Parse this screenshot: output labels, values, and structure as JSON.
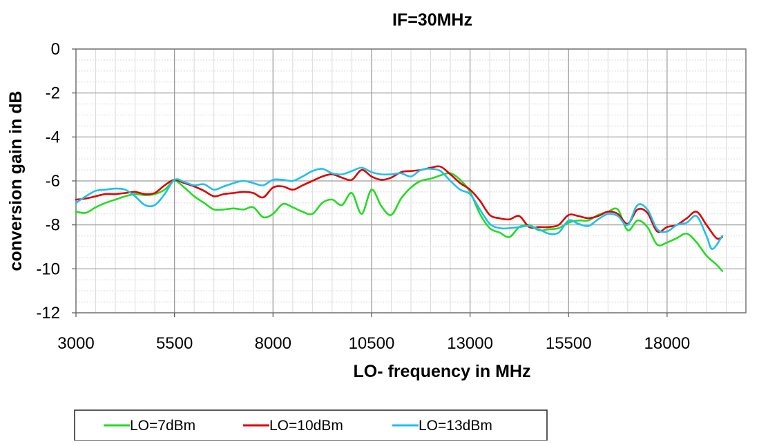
{
  "chart_data": {
    "type": "line",
    "title": "IF=30MHz",
    "xlabel": "LO- frequency in MHz",
    "ylabel": "conversion gain in dB",
    "xlim": [
      3000,
      20000
    ],
    "ylim": [
      -12,
      0
    ],
    "x_ticks": [
      3000,
      5500,
      8000,
      10500,
      13000,
      15500,
      18000
    ],
    "x_tick_labels": [
      "3000",
      "5500",
      "8000",
      "10500",
      "13000",
      "15500",
      "18000"
    ],
    "y_ticks": [
      0,
      -2,
      -4,
      -6,
      -8,
      -10,
      -12
    ],
    "y_tick_labels": [
      "0",
      "-2",
      "-4",
      "-6",
      "-8",
      "-10",
      "-12"
    ],
    "x_minor_step": 500,
    "y_minor_step": 0.5,
    "grid": true,
    "legend_position": "bottom-left",
    "series": [
      {
        "name": "LO=7dBm",
        "color": "#22dd22",
        "points": [
          [
            3000,
            -7.4
          ],
          [
            3250,
            -7.45
          ],
          [
            3500,
            -7.2
          ],
          [
            3750,
            -7.0
          ],
          [
            4000,
            -6.85
          ],
          [
            4250,
            -6.7
          ],
          [
            4500,
            -6.6
          ],
          [
            4750,
            -6.65
          ],
          [
            5000,
            -6.6
          ],
          [
            5250,
            -6.4
          ],
          [
            5500,
            -6.0
          ],
          [
            5750,
            -6.3
          ],
          [
            6000,
            -6.7
          ],
          [
            6250,
            -7.0
          ],
          [
            6500,
            -7.3
          ],
          [
            6750,
            -7.3
          ],
          [
            7000,
            -7.25
          ],
          [
            7250,
            -7.3
          ],
          [
            7500,
            -7.2
          ],
          [
            7750,
            -7.65
          ],
          [
            8000,
            -7.5
          ],
          [
            8250,
            -7.05
          ],
          [
            8500,
            -7.2
          ],
          [
            8750,
            -7.4
          ],
          [
            9000,
            -7.5
          ],
          [
            9250,
            -7.0
          ],
          [
            9500,
            -6.85
          ],
          [
            9750,
            -7.1
          ],
          [
            10000,
            -6.55
          ],
          [
            10250,
            -7.5
          ],
          [
            10500,
            -6.4
          ],
          [
            10750,
            -7.15
          ],
          [
            11000,
            -7.55
          ],
          [
            11250,
            -6.8
          ],
          [
            11500,
            -6.3
          ],
          [
            11750,
            -6.0
          ],
          [
            12000,
            -5.9
          ],
          [
            12250,
            -5.75
          ],
          [
            12500,
            -5.65
          ],
          [
            12750,
            -5.95
          ],
          [
            13000,
            -6.5
          ],
          [
            13250,
            -7.5
          ],
          [
            13500,
            -8.15
          ],
          [
            13750,
            -8.35
          ],
          [
            14000,
            -8.55
          ],
          [
            14250,
            -8.1
          ],
          [
            14500,
            -8.0
          ],
          [
            14750,
            -8.25
          ],
          [
            15000,
            -8.2
          ],
          [
            15250,
            -8.15
          ],
          [
            15500,
            -7.9
          ],
          [
            15750,
            -7.8
          ],
          [
            16000,
            -7.8
          ],
          [
            16250,
            -7.55
          ],
          [
            16500,
            -7.4
          ],
          [
            16750,
            -7.3
          ],
          [
            17000,
            -8.25
          ],
          [
            17250,
            -7.8
          ],
          [
            17500,
            -8.1
          ],
          [
            17750,
            -8.9
          ],
          [
            18000,
            -8.8
          ],
          [
            18250,
            -8.6
          ],
          [
            18500,
            -8.4
          ],
          [
            18750,
            -8.8
          ],
          [
            19000,
            -9.4
          ],
          [
            19250,
            -9.8
          ],
          [
            19400,
            -10.1
          ]
        ]
      },
      {
        "name": "LO=10dBm",
        "color": "#e00000",
        "points": [
          [
            3000,
            -6.85
          ],
          [
            3250,
            -6.8
          ],
          [
            3500,
            -6.7
          ],
          [
            3750,
            -6.6
          ],
          [
            4000,
            -6.6
          ],
          [
            4250,
            -6.55
          ],
          [
            4500,
            -6.5
          ],
          [
            4750,
            -6.6
          ],
          [
            5000,
            -6.55
          ],
          [
            5250,
            -6.2
          ],
          [
            5500,
            -5.95
          ],
          [
            5750,
            -6.1
          ],
          [
            6000,
            -6.25
          ],
          [
            6250,
            -6.45
          ],
          [
            6500,
            -6.7
          ],
          [
            6750,
            -6.6
          ],
          [
            7000,
            -6.55
          ],
          [
            7250,
            -6.5
          ],
          [
            7500,
            -6.55
          ],
          [
            7750,
            -6.75
          ],
          [
            8000,
            -6.3
          ],
          [
            8250,
            -6.25
          ],
          [
            8500,
            -6.4
          ],
          [
            8750,
            -6.2
          ],
          [
            9000,
            -6.0
          ],
          [
            9250,
            -5.8
          ],
          [
            9500,
            -5.7
          ],
          [
            9750,
            -5.85
          ],
          [
            10000,
            -5.95
          ],
          [
            10250,
            -5.5
          ],
          [
            10500,
            -5.8
          ],
          [
            10750,
            -5.95
          ],
          [
            11000,
            -5.85
          ],
          [
            11250,
            -5.6
          ],
          [
            11500,
            -5.55
          ],
          [
            11750,
            -5.5
          ],
          [
            12000,
            -5.4
          ],
          [
            12250,
            -5.35
          ],
          [
            12500,
            -5.7
          ],
          [
            12750,
            -6.1
          ],
          [
            13000,
            -6.4
          ],
          [
            13250,
            -6.9
          ],
          [
            13500,
            -7.55
          ],
          [
            13750,
            -7.7
          ],
          [
            14000,
            -7.75
          ],
          [
            14250,
            -7.6
          ],
          [
            14500,
            -8.1
          ],
          [
            14750,
            -8.1
          ],
          [
            15000,
            -8.1
          ],
          [
            15250,
            -8.0
          ],
          [
            15500,
            -7.55
          ],
          [
            15750,
            -7.6
          ],
          [
            16000,
            -7.7
          ],
          [
            16250,
            -7.6
          ],
          [
            16500,
            -7.4
          ],
          [
            16750,
            -7.5
          ],
          [
            17000,
            -7.95
          ],
          [
            17250,
            -7.3
          ],
          [
            17500,
            -7.45
          ],
          [
            17750,
            -8.3
          ],
          [
            18000,
            -8.1
          ],
          [
            18250,
            -8.0
          ],
          [
            18500,
            -7.7
          ],
          [
            18750,
            -7.4
          ],
          [
            19000,
            -8.0
          ],
          [
            19250,
            -8.6
          ],
          [
            19400,
            -8.55
          ]
        ]
      },
      {
        "name": "LO=13dBm",
        "color": "#1ec0ee",
        "points": [
          [
            3000,
            -7.0
          ],
          [
            3250,
            -6.7
          ],
          [
            3500,
            -6.45
          ],
          [
            3750,
            -6.4
          ],
          [
            4000,
            -6.35
          ],
          [
            4250,
            -6.4
          ],
          [
            4500,
            -6.7
          ],
          [
            4750,
            -7.1
          ],
          [
            5000,
            -7.1
          ],
          [
            5250,
            -6.6
          ],
          [
            5500,
            -5.95
          ],
          [
            5750,
            -6.05
          ],
          [
            6000,
            -6.2
          ],
          [
            6250,
            -6.15
          ],
          [
            6500,
            -6.4
          ],
          [
            6750,
            -6.25
          ],
          [
            7000,
            -6.1
          ],
          [
            7250,
            -6.0
          ],
          [
            7500,
            -6.1
          ],
          [
            7750,
            -6.2
          ],
          [
            8000,
            -5.95
          ],
          [
            8250,
            -5.95
          ],
          [
            8500,
            -6.0
          ],
          [
            8750,
            -5.8
          ],
          [
            9000,
            -5.55
          ],
          [
            9250,
            -5.45
          ],
          [
            9500,
            -5.65
          ],
          [
            9750,
            -5.7
          ],
          [
            10000,
            -5.55
          ],
          [
            10250,
            -5.4
          ],
          [
            10500,
            -5.6
          ],
          [
            10750,
            -5.7
          ],
          [
            11000,
            -5.7
          ],
          [
            11250,
            -5.65
          ],
          [
            11500,
            -5.8
          ],
          [
            11750,
            -5.5
          ],
          [
            12000,
            -5.45
          ],
          [
            12250,
            -5.55
          ],
          [
            12500,
            -6.0
          ],
          [
            12750,
            -6.4
          ],
          [
            13000,
            -6.6
          ],
          [
            13250,
            -7.3
          ],
          [
            13500,
            -7.95
          ],
          [
            13750,
            -8.15
          ],
          [
            14000,
            -8.15
          ],
          [
            14250,
            -8.1
          ],
          [
            14500,
            -8.05
          ],
          [
            14750,
            -8.2
          ],
          [
            15000,
            -8.4
          ],
          [
            15250,
            -8.35
          ],
          [
            15500,
            -7.8
          ],
          [
            15750,
            -7.95
          ],
          [
            16000,
            -8.05
          ],
          [
            16250,
            -7.75
          ],
          [
            16500,
            -7.5
          ],
          [
            16750,
            -7.6
          ],
          [
            17000,
            -8.0
          ],
          [
            17250,
            -7.1
          ],
          [
            17500,
            -7.3
          ],
          [
            17750,
            -8.2
          ],
          [
            18000,
            -8.3
          ],
          [
            18250,
            -8.0
          ],
          [
            18500,
            -7.9
          ],
          [
            18750,
            -7.6
          ],
          [
            19000,
            -8.5
          ],
          [
            19150,
            -9.1
          ],
          [
            19400,
            -8.5
          ]
        ]
      }
    ]
  }
}
